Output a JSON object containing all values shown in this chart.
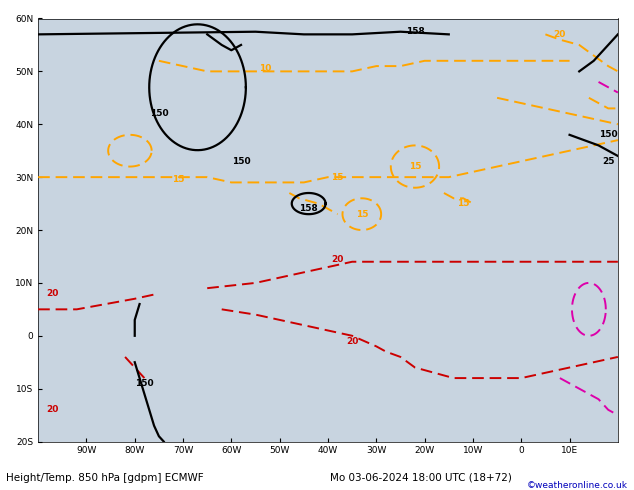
{
  "title_left": "Height/Temp. 850 hPa [gdpm] ECMWF",
  "title_right": "Mo 03-06-2024 18:00 UTC (18+72)",
  "credit": "©weatheronline.co.uk",
  "bg_color": "#c8d4e0",
  "land_color": "#b8dca8",
  "land_edge": "#888888",
  "grid_color": "#aabbcc",
  "contour_black": "#000000",
  "contour_orange": "#ffa500",
  "contour_red": "#cc0000",
  "contour_magenta": "#dd00aa",
  "label_fontsize": 6.5,
  "bottom_fontsize": 7.5,
  "credit_fontsize": 6.5,
  "figsize": [
    6.34,
    4.9
  ],
  "dpi": 100,
  "extent": [
    -100,
    20,
    -20,
    60
  ],
  "xticks": [
    -90,
    -80,
    -70,
    -60,
    -50,
    -40,
    -30,
    -20,
    -10,
    0,
    10
  ],
  "yticks": [
    -20,
    -10,
    0,
    10,
    20,
    30,
    40,
    50,
    60
  ],
  "xlabel_labels": [
    "90W",
    "80W",
    "70W",
    "60W",
    "50W",
    "40W",
    "30W",
    "20W",
    "10W",
    "0",
    "10E"
  ],
  "ylabel_labels": [
    "20S",
    "10S",
    "0",
    "10N",
    "20N",
    "30N",
    "40N",
    "50N",
    "60N"
  ]
}
